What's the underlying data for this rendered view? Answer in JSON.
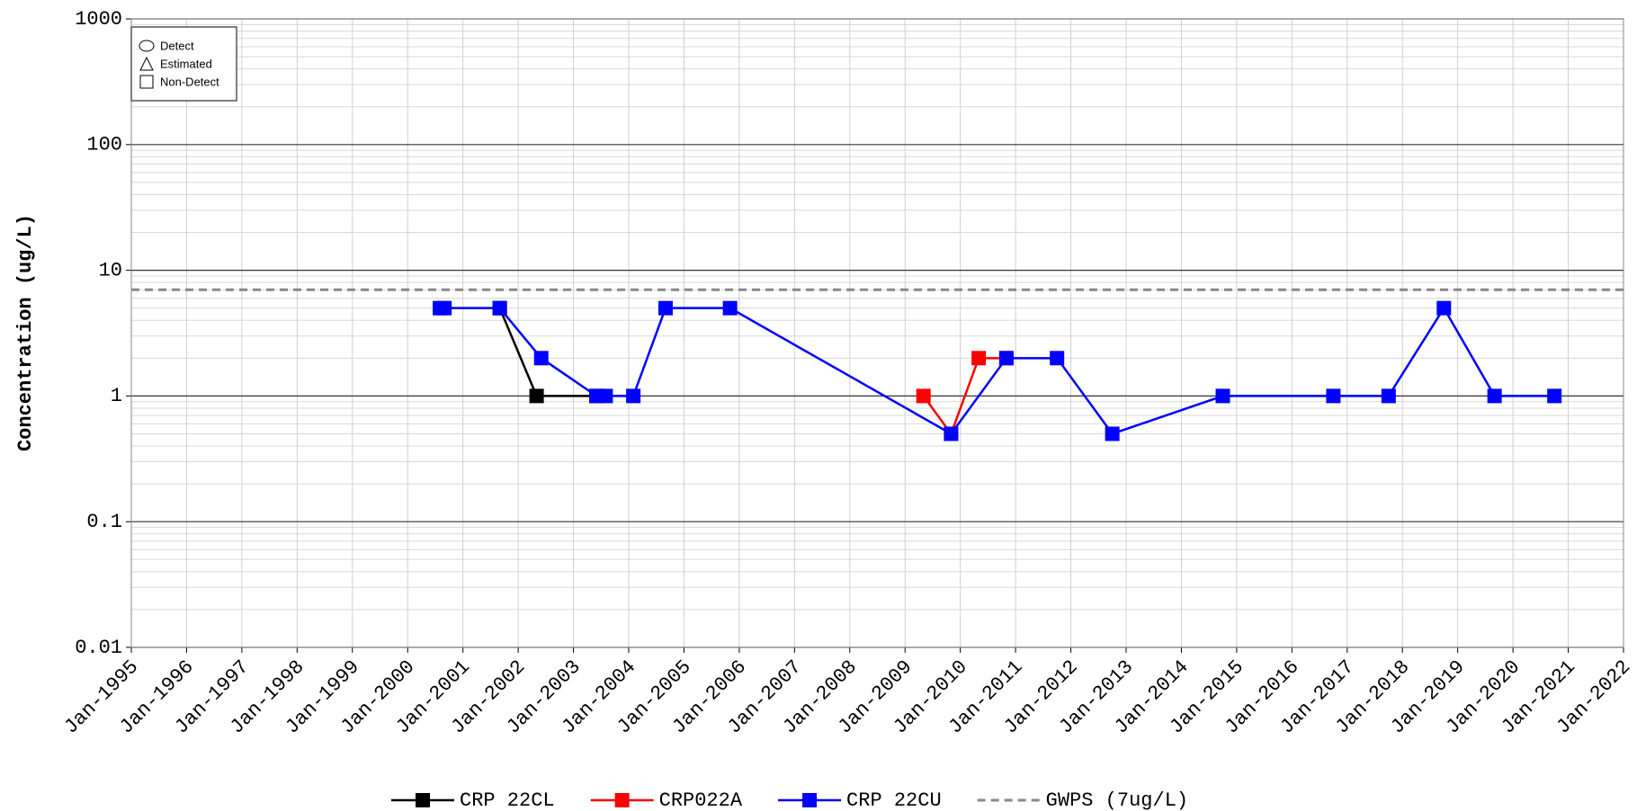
{
  "chart_data": {
    "type": "line",
    "y_label": "Concentration (ug/L)",
    "log_y": true,
    "grid": true,
    "xlim": [
      "1995-01",
      "2022-01"
    ],
    "xticks": [
      {
        "value": "1995-01",
        "label": "Jan-1995"
      },
      {
        "value": "1996-01",
        "label": "Jan-1996"
      },
      {
        "value": "1997-01",
        "label": "Jan-1997"
      },
      {
        "value": "1998-01",
        "label": "Jan-1998"
      },
      {
        "value": "1999-01",
        "label": "Jan-1999"
      },
      {
        "value": "2000-01",
        "label": "Jan-2000"
      },
      {
        "value": "2001-01",
        "label": "Jan-2001"
      },
      {
        "value": "2002-01",
        "label": "Jan-2002"
      },
      {
        "value": "2003-01",
        "label": "Jan-2003"
      },
      {
        "value": "2004-01",
        "label": "Jan-2004"
      },
      {
        "value": "2005-01",
        "label": "Jan-2005"
      },
      {
        "value": "2006-01",
        "label": "Jan-2006"
      },
      {
        "value": "2007-01",
        "label": "Jan-2007"
      },
      {
        "value": "2008-01",
        "label": "Jan-2008"
      },
      {
        "value": "2009-01",
        "label": "Jan-2009"
      },
      {
        "value": "2010-01",
        "label": "Jan-2010"
      },
      {
        "value": "2011-01",
        "label": "Jan-2011"
      },
      {
        "value": "2012-01",
        "label": "Jan-2012"
      },
      {
        "value": "2013-01",
        "label": "Jan-2013"
      },
      {
        "value": "2014-01",
        "label": "Jan-2014"
      },
      {
        "value": "2015-01",
        "label": "Jan-2015"
      },
      {
        "value": "2016-01",
        "label": "Jan-2016"
      },
      {
        "value": "2017-01",
        "label": "Jan-2017"
      },
      {
        "value": "2018-01",
        "label": "Jan-2018"
      },
      {
        "value": "2019-01",
        "label": "Jan-2019"
      },
      {
        "value": "2020-01",
        "label": "Jan-2020"
      },
      {
        "value": "2021-01",
        "label": "Jan-2021"
      },
      {
        "value": "2022-01",
        "label": "Jan-2022"
      }
    ],
    "ylim": [
      0.01,
      1000
    ],
    "yticks": [
      0.01,
      0.1,
      1,
      10,
      100,
      1000
    ],
    "symbol_legend": [
      "Detect",
      "Estimated",
      "Non-Detect"
    ],
    "series": [
      {
        "name": "CRP 22CL",
        "color": "#000000",
        "x": [
          "2001-09",
          "2002-05",
          "2003-06"
        ],
        "values": [
          5,
          1,
          1
        ]
      },
      {
        "name": "CRP022A",
        "color": "#ff0000",
        "x": [
          "2009-05",
          "2009-11",
          "2010-05",
          "2010-11"
        ],
        "values": [
          1,
          0.5,
          2,
          2
        ]
      },
      {
        "name": "CRP 22CU",
        "color": "#0000ff",
        "x": [
          "2000-08",
          "2000-09",
          "2001-09",
          "2002-06",
          "2003-06",
          "2003-08",
          "2004-02",
          "2004-09",
          "2005-11",
          "2009-11",
          "2010-11",
          "2011-10",
          "2012-10",
          "2014-10",
          "2016-10",
          "2017-10",
          "2018-10",
          "2019-09",
          "2020-10"
        ],
        "values": [
          5,
          5,
          5,
          2,
          1,
          1,
          1,
          5,
          5,
          0.5,
          2,
          2,
          0.5,
          1,
          1,
          1,
          5,
          1,
          1
        ]
      }
    ],
    "reference_lines": [
      {
        "name": "GWPS (7ug/L)",
        "value": 7,
        "color": "#888888"
      }
    ]
  }
}
